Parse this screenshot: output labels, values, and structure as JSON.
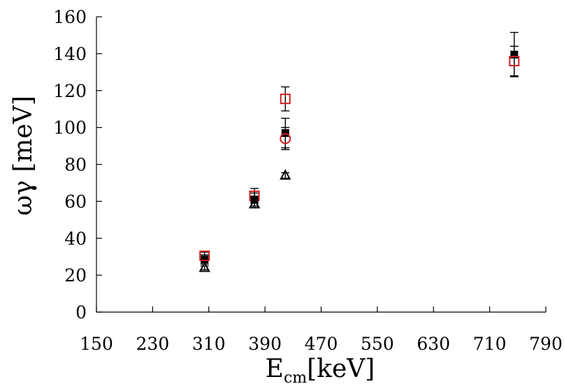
{
  "chart_data": {
    "type": "scatter",
    "xlabel": "E",
    "xlabel_subscript": "cm",
    "xlabel_unit": "[keV]",
    "ylabel": "ωγ [meV]",
    "xlim": [
      150,
      790
    ],
    "ylim": [
      0,
      160
    ],
    "xticks": [
      150,
      230,
      310,
      390,
      470,
      550,
      630,
      710,
      790
    ],
    "yticks": [
      0,
      20,
      40,
      60,
      80,
      100,
      120,
      140,
      160
    ],
    "grid": false,
    "legend": "none",
    "series": [
      {
        "marker": "filled-square",
        "color": "#000000",
        "points": [
          {
            "x": 304,
            "y": 28.5,
            "err": 2.5
          },
          {
            "x": 375,
            "y": 61.0,
            "err": 3.5
          },
          {
            "x": 419,
            "y": 97.0,
            "err": 8.0
          },
          {
            "x": 745,
            "y": 139.5,
            "err": 12.0
          }
        ]
      },
      {
        "marker": "open-square",
        "color": "#d62020",
        "points": [
          {
            "x": 304,
            "y": 30.5,
            "err": 2.0
          },
          {
            "x": 375,
            "y": 63.0,
            "err": 4.0
          },
          {
            "x": 419,
            "y": 115.5,
            "err": 6.5
          },
          {
            "x": 745,
            "y": 136.0,
            "err": 8.0
          }
        ]
      },
      {
        "marker": "open-circle",
        "color": "#d62020",
        "points": [
          {
            "x": 419,
            "y": 94.0,
            "err": 6.0
          }
        ]
      },
      {
        "marker": "open-triangle",
        "color": "#000000",
        "points": [
          {
            "x": 304,
            "y": 24.0,
            "err": 1.0
          },
          {
            "x": 375,
            "y": 58.5,
            "err": 2.0
          },
          {
            "x": 419,
            "y": 74.0,
            "err": 1.5
          }
        ]
      }
    ]
  }
}
